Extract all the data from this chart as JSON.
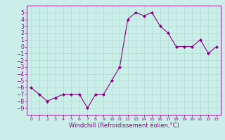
{
  "x": [
    0,
    1,
    2,
    3,
    4,
    5,
    6,
    7,
    8,
    9,
    10,
    11,
    12,
    13,
    14,
    15,
    16,
    17,
    18,
    19,
    20,
    21,
    22,
    23
  ],
  "y": [
    -6,
    -7,
    -8,
    -7.5,
    -7,
    -7,
    -7,
    -9,
    -7,
    -7,
    -5,
    -3,
    4,
    5,
    4.5,
    5,
    3,
    2,
    0,
    0,
    0,
    1,
    -1,
    0
  ],
  "xlabel": "Windchill (Refroidissement éolien,°C)",
  "xlim": [
    -0.5,
    23.5
  ],
  "ylim": [
    -10,
    6
  ],
  "yticks": [
    5,
    4,
    3,
    2,
    1,
    0,
    -1,
    -2,
    -3,
    -4,
    -5,
    -6,
    -7,
    -8,
    -9
  ],
  "xticks": [
    0,
    1,
    2,
    3,
    4,
    5,
    6,
    7,
    8,
    9,
    10,
    11,
    12,
    13,
    14,
    15,
    16,
    17,
    18,
    19,
    20,
    21,
    22,
    23
  ],
  "line_color": "#880088",
  "marker": "D",
  "marker_size": 2.0,
  "bg_color": "#cceee8",
  "grid_color": "#aaddcc",
  "tick_label_color": "#880088",
  "axis_label_color": "#880088",
  "tick_fontsize": 5.5,
  "xlabel_fontsize": 6.0,
  "linewidth": 0.8
}
